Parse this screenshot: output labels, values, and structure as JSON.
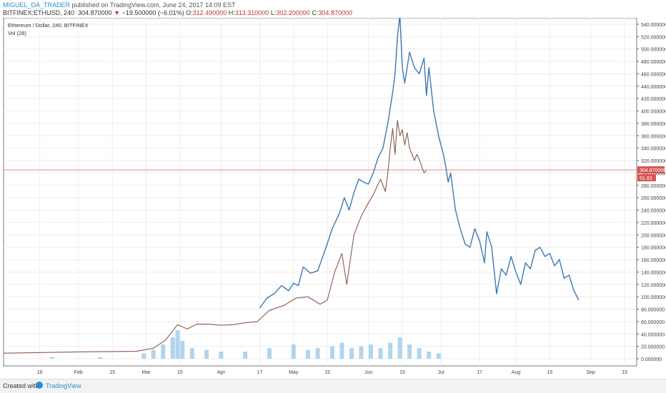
{
  "header": {
    "author": "MIGUEL_DA_TRADER",
    "published": " published on TradingView.com, June 24, 2017 14:09 EST",
    "symbol": "BITFINEX:ETHUSD, 240",
    "last": "304.870000",
    "change_arrow": "▼",
    "change": "−19.500000 (−6.01%)",
    "o_label": "O:",
    "o_val": "312.490000",
    "h_label": "H:",
    "h_val": "313.310000",
    "l_label": "L:",
    "l_val": "302.200000",
    "c_label": "C:",
    "c_val": "304.870000"
  },
  "footer": {
    "created": "Created with",
    "brand": "TradingView"
  },
  "colors": {
    "projection": "#3c78b4",
    "candles": "#8a5a4a",
    "volume": "#8fc3e8",
    "price_line": "#e07a6a",
    "price_tag": "#d9534f",
    "grid": "#eeeeee"
  },
  "chart_data": {
    "type": "line",
    "legend_title": "Ethereum / Dollar, 240, BITFINEX",
    "volume_label": "Vol (28)",
    "last_price_tag": "304.870000",
    "volume_tag": "51.83",
    "ylim": [
      0,
      548
    ],
    "y_ticks": [
      "0.000000",
      "20.000000",
      "40.000000",
      "60.000000",
      "80.000000",
      "100.000000",
      "120.000000",
      "140.000000",
      "160.000000",
      "180.000000",
      "200.000000",
      "220.000000",
      "240.000000",
      "260.000000",
      "280.000000",
      "300.000000",
      "320.000000",
      "340.000000",
      "360.000000",
      "380.000000",
      "400.000000",
      "420.000000",
      "440.000000",
      "460.000000",
      "480.000000",
      "500.000000",
      "520.000000",
      "540.000000"
    ],
    "x_ticks": [
      {
        "label": "16",
        "day": 15
      },
      {
        "label": "Feb",
        "day": 31
      },
      {
        "label": "15",
        "day": 45
      },
      {
        "label": "Mar",
        "day": 59
      },
      {
        "label": "15",
        "day": 73
      },
      {
        "label": "Apr",
        "day": 90
      },
      {
        "label": "17",
        "day": 106
      },
      {
        "label": "May",
        "day": 120
      },
      {
        "label": "15",
        "day": 134
      },
      {
        "label": "Jun",
        "day": 151
      },
      {
        "label": "15",
        "day": 165
      },
      {
        "label": "Jul",
        "day": 181
      },
      {
        "label": "17",
        "day": 197
      },
      {
        "label": "Aug",
        "day": 212
      },
      {
        "label": "15",
        "day": 226
      },
      {
        "label": "Sep",
        "day": 243
      },
      {
        "label": "15",
        "day": 257
      }
    ],
    "series": [
      {
        "name": "",
        "x": [
          0,
          30,
          55,
          62,
          67,
          72,
          76,
          80,
          85,
          90,
          95,
          100,
          105,
          110,
          116,
          121,
          126,
          131,
          134,
          137,
          140,
          142,
          145,
          148,
          150,
          153,
          156,
          158,
          159,
          160,
          161,
          162,
          163,
          164,
          165,
          166,
          167,
          168,
          169,
          170,
          171,
          172,
          174,
          175
        ],
        "y": [
          9,
          11,
          12,
          17,
          30,
          55,
          48,
          56,
          56,
          54,
          55,
          58,
          60,
          78,
          86,
          98,
          100,
          88,
          95,
          140,
          170,
          120,
          200,
          230,
          245,
          265,
          290,
          270,
          300,
          340,
          372,
          330,
          385,
          360,
          370,
          345,
          365,
          340,
          330,
          320,
          330,
          322,
          300,
          304
        ]
      },
      {
        "name": "",
        "x": [
          106,
          109,
          112,
          115,
          118,
          120,
          122,
          124,
          127,
          130,
          133,
          136,
          139,
          141,
          143,
          145,
          147,
          149,
          151,
          153,
          155,
          157,
          159,
          161,
          162,
          163,
          164,
          165,
          166,
          168,
          170,
          172,
          174,
          175,
          176,
          178,
          180,
          182,
          183,
          184,
          185,
          186,
          187,
          189,
          191,
          193,
          195,
          197,
          199,
          200,
          202,
          204,
          206,
          208,
          210,
          212,
          214,
          216,
          218,
          220,
          222,
          224
        ],
        "y": [
          82,
          98,
          105,
          118,
          110,
          122,
          118,
          148,
          138,
          142,
          175,
          210,
          235,
          260,
          240,
          268,
          290,
          285,
          282,
          300,
          325,
          340,
          380,
          430,
          460,
          520,
          555,
          470,
          445,
          495,
          470,
          460,
          485,
          425,
          470,
          400,
          360,
          330,
          310,
          285,
          300,
          270,
          240,
          210,
          185,
          180,
          210,
          190,
          155,
          205,
          180,
          105,
          145,
          135,
          165,
          140,
          120,
          155,
          145,
          175,
          180,
          165
        ]
      }
    ],
    "projection_tail": {
      "x": [
        226,
        228,
        230,
        232,
        234,
        236,
        238
      ],
      "y": [
        170,
        150,
        160,
        130,
        135,
        110,
        95
      ]
    },
    "volume": {
      "x": [
        20,
        40,
        58,
        62,
        66,
        70,
        72,
        74,
        78,
        84,
        90,
        100,
        110,
        120,
        126,
        130,
        136,
        140,
        144,
        148,
        152,
        156,
        160,
        164,
        168,
        172,
        176,
        180
      ],
      "y": [
        1,
        1,
        3,
        5,
        8,
        12,
        16,
        10,
        6,
        5,
        4,
        4,
        6,
        8,
        5,
        6,
        7,
        9,
        6,
        7,
        8,
        6,
        9,
        12,
        8,
        6,
        4,
        3
      ]
    },
    "volume_ylim": [
      0,
      20
    ],
    "last_price": 304.87
  }
}
